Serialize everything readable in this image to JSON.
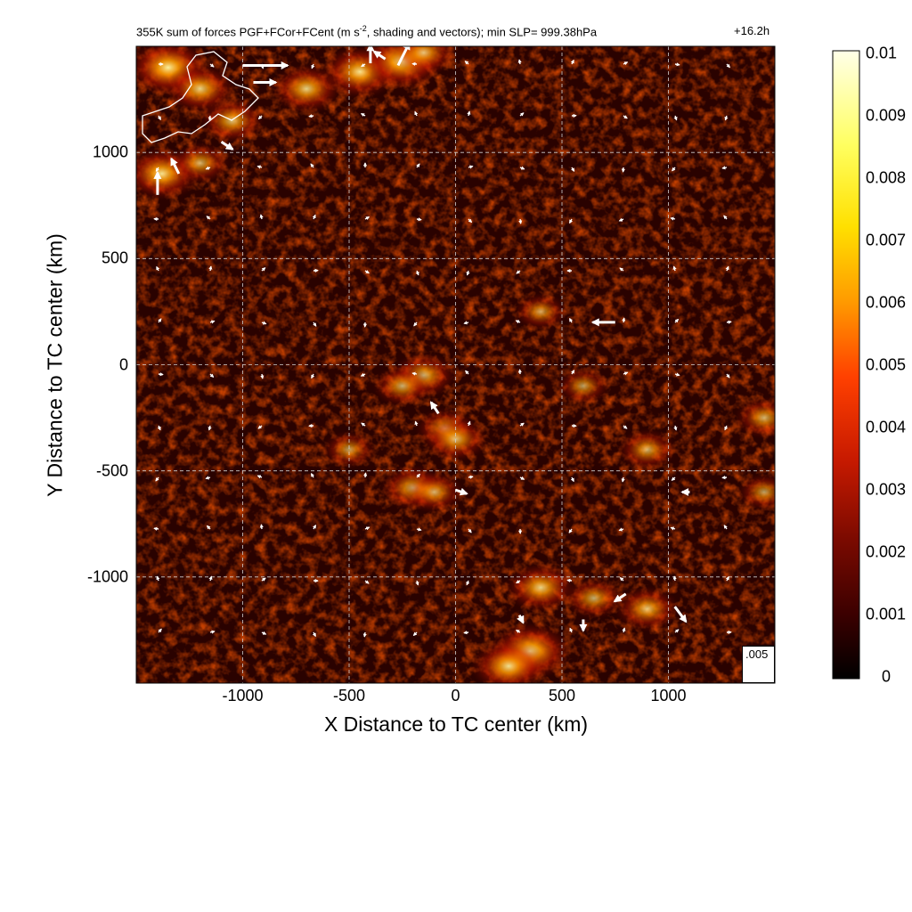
{
  "title_prefix": "355K sum of forces PGF+FCor+FCent (m s",
  "title_exp": "-2",
  "title_suffix": ", shading and vectors); min SLP= 999.38hPa",
  "time_label": "+16.2h",
  "reference_vector_label": ".005",
  "colors": {
    "cmap": [
      "#000000",
      "#3a0000",
      "#7a0a00",
      "#c81a00",
      "#ff4000",
      "#ff9a00",
      "#ffe000",
      "#ffff60",
      "#ffffe0"
    ],
    "grid": "#d0d0d0",
    "vector": "#ffffff"
  },
  "chart_data": {
    "type": "heatmap",
    "xlabel": "X Distance to TC center (km)",
    "ylabel": "Y Distance to TC center (km)",
    "xlim": [
      -1500,
      1500
    ],
    "ylim": [
      -1500,
      1500
    ],
    "xticks": [
      -1000,
      -500,
      0,
      500,
      1000
    ],
    "yticks": [
      -1000,
      -500,
      0,
      500,
      1000
    ],
    "grid": true,
    "colorbar": {
      "range": [
        0,
        0.01
      ],
      "ticks": [
        "0",
        "0.001",
        "0.002",
        "0.003",
        "0.004",
        "0.005",
        "0.006",
        "0.007",
        "0.008",
        "0.009",
        "0.01"
      ]
    },
    "hotspots": [
      {
        "x": -1350,
        "y": 1400,
        "value": 0.009
      },
      {
        "x": -1200,
        "y": 1300,
        "value": 0.007
      },
      {
        "x": -1050,
        "y": 1150,
        "value": 0.006
      },
      {
        "x": -1380,
        "y": 900,
        "value": 0.008
      },
      {
        "x": -1200,
        "y": 950,
        "value": 0.005
      },
      {
        "x": -700,
        "y": 1300,
        "value": 0.007
      },
      {
        "x": -450,
        "y": 1380,
        "value": 0.008
      },
      {
        "x": -250,
        "y": 1430,
        "value": 0.009
      },
      {
        "x": -150,
        "y": 1470,
        "value": 0.006
      },
      {
        "x": -150,
        "y": -50,
        "value": 0.006
      },
      {
        "x": -250,
        "y": -100,
        "value": 0.005
      },
      {
        "x": -50,
        "y": -300,
        "value": 0.005
      },
      {
        "x": 0,
        "y": -350,
        "value": 0.006
      },
      {
        "x": -200,
        "y": -580,
        "value": 0.006
      },
      {
        "x": -100,
        "y": -600,
        "value": 0.005
      },
      {
        "x": 400,
        "y": -1050,
        "value": 0.007
      },
      {
        "x": 350,
        "y": -1350,
        "value": 0.009
      },
      {
        "x": 250,
        "y": -1420,
        "value": 0.008
      },
      {
        "x": 650,
        "y": -1100,
        "value": 0.005
      },
      {
        "x": 900,
        "y": -1150,
        "value": 0.006
      },
      {
        "x": 900,
        "y": -400,
        "value": 0.005
      },
      {
        "x": 1450,
        "y": -250,
        "value": 0.005
      },
      {
        "x": 600,
        "y": -100,
        "value": 0.004
      },
      {
        "x": 400,
        "y": 250,
        "value": 0.004
      },
      {
        "x": 1450,
        "y": -600,
        "value": 0.004
      },
      {
        "x": -500,
        "y": -400,
        "value": 0.004
      }
    ],
    "vectors": [
      {
        "x": -1000,
        "y": 1410,
        "u": 0.012,
        "v": 0.0
      },
      {
        "x": -950,
        "y": 1330,
        "u": 0.006,
        "v": 0.0
      },
      {
        "x": -400,
        "y": 1420,
        "u": 0.0,
        "v": 0.005
      },
      {
        "x": -330,
        "y": 1440,
        "u": -0.003,
        "v": 0.002
      },
      {
        "x": -270,
        "y": 1410,
        "u": 0.003,
        "v": 0.006
      },
      {
        "x": -1400,
        "y": 800,
        "u": 0.0,
        "v": 0.006
      },
      {
        "x": -1300,
        "y": 900,
        "u": -0.002,
        "v": 0.004
      },
      {
        "x": -1100,
        "y": 1050,
        "u": 0.003,
        "v": -0.002
      },
      {
        "x": 750,
        "y": 200,
        "u": -0.006,
        "v": 0.0
      },
      {
        "x": -80,
        "y": -230,
        "u": -0.002,
        "v": 0.003
      },
      {
        "x": 0,
        "y": -590,
        "u": 0.003,
        "v": -0.001
      },
      {
        "x": 1030,
        "y": -1140,
        "u": 0.003,
        "v": -0.004
      },
      {
        "x": 800,
        "y": -1080,
        "u": -0.003,
        "v": -0.002
      },
      {
        "x": 600,
        "y": -1200,
        "u": 0.0,
        "v": -0.003
      },
      {
        "x": 300,
        "y": -1180,
        "u": 0.001,
        "v": -0.002
      },
      {
        "x": 1100,
        "y": -600,
        "u": -0.002,
        "v": 0.0
      }
    ]
  }
}
